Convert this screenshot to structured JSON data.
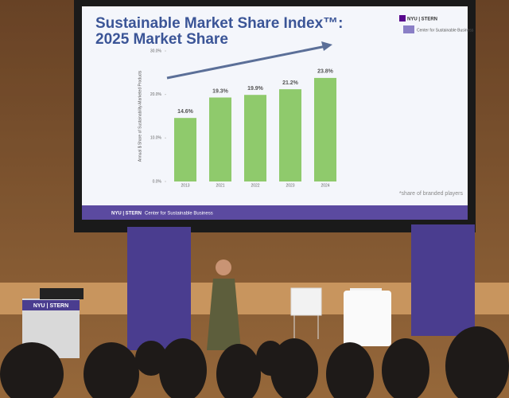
{
  "chart_data": {
    "type": "bar",
    "title": "Sustainable Market Share Index™:",
    "subtitle": "2025 Market Share",
    "ylabel": "Annual $ Share of Sustainability-Marketed Products",
    "categories": [
      "2013",
      "2021",
      "2022",
      "2023",
      "2024"
    ],
    "values": [
      14.6,
      19.3,
      19.9,
      21.2,
      23.8
    ],
    "value_labels": [
      "14.6%",
      "19.3%",
      "19.9%",
      "21.2%",
      "23.8%"
    ],
    "color": "#8fca6c",
    "ylim": [
      0,
      30
    ],
    "yticks": [
      {
        "value": 0,
        "label": "0.0%"
      },
      {
        "value": 10,
        "label": "10.0%"
      },
      {
        "value": 20,
        "label": "20.0%"
      },
      {
        "value": 30,
        "label": "30.0%"
      }
    ],
    "grid": false,
    "footnote": "*share of branded players"
  },
  "slide": {
    "logo": "NYU | STERN",
    "logo_sub": "Center for Sustainable Business",
    "footer_logo": "NYU | STERN",
    "footer_text": "Center for Sustainable Business"
  },
  "podium": {
    "label": "NYU | STERN"
  }
}
